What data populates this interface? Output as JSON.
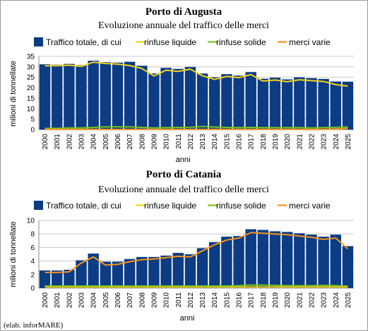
{
  "credit": "(elab. inforMARE)",
  "colors": {
    "traffico": "#0b3c84",
    "rinfuse_liquide": "#f5d51c",
    "rinfuse_solide": "#7dbf1e",
    "merci_varie": "#f7941d",
    "grid": "#c8c8c8"
  },
  "chart_data": [
    {
      "type": "bar",
      "title": "Porto di Augusta",
      "subtitle": "Evoluzione annuale del traffico delle merci",
      "xlabel": "anni",
      "ylabel": "milioni di tonnellate",
      "ylim": [
        0,
        35
      ],
      "yticks": [
        0,
        5,
        10,
        15,
        20,
        25,
        30,
        35
      ],
      "grid": true,
      "legend": "top",
      "categories": [
        "2000",
        "2001",
        "2002",
        "2003",
        "2004",
        "2005",
        "2006",
        "2007",
        "2008",
        "2009",
        "2010",
        "2011",
        "2012",
        "2013",
        "2014",
        "2015",
        "2016",
        "2017",
        "2018",
        "2019",
        "2020",
        "2021",
        "2022",
        "2023",
        "2024",
        "2025"
      ],
      "series": [
        {
          "name": "Traffico totale, di cui",
          "kind": "bar",
          "color": "#0b3c84",
          "values": [
            31.2,
            31.0,
            31.4,
            30.8,
            32.9,
            32.2,
            32.0,
            32.4,
            30.5,
            26.8,
            29.5,
            29.0,
            29.9,
            26.8,
            25.0,
            26.5,
            25.8,
            27.5,
            24.3,
            24.8,
            24.0,
            25.0,
            24.6,
            24.2,
            23.0,
            22.9
          ]
        },
        {
          "name": "rinfuse liquide",
          "kind": "line",
          "color": "#f5d51c",
          "values": [
            30.5,
            30.5,
            30.8,
            30.2,
            32.2,
            31.6,
            31.3,
            30.6,
            29.2,
            25.6,
            28.4,
            27.8,
            28.9,
            25.7,
            24.0,
            25.4,
            24.8,
            26.3,
            23.2,
            23.7,
            22.9,
            23.8,
            23.4,
            23.0,
            21.5,
            20.8
          ]
        },
        {
          "name": "rinfuse solide",
          "kind": "line",
          "color": "#7dbf1e",
          "values": [
            0.6,
            0.6,
            0.8,
            0.8,
            1.0,
            1.3,
            1.3,
            1.3,
            1.0,
            0.8,
            0.9,
            1.0,
            1.1,
            1.5,
            1.2,
            1.0,
            0.9,
            1.0,
            0.9,
            0.9,
            0.9,
            0.9,
            0.8,
            0.9,
            1.1,
            1.2
          ]
        },
        {
          "name": "merci varie",
          "kind": "line",
          "color": "#f7941d",
          "values": [
            0.1,
            0.1,
            0.1,
            0.1,
            0.1,
            0.1,
            0.1,
            0.1,
            0.1,
            0.1,
            0.1,
            0.1,
            0.1,
            0.1,
            0.1,
            0.1,
            0.1,
            0.1,
            0.1,
            0.1,
            0.1,
            0.1,
            0.1,
            0.1,
            0.3,
            0.5
          ]
        }
      ]
    },
    {
      "type": "bar",
      "title": "Porto di Catania",
      "subtitle": "Evoluzione annuale del traffico delle merci",
      "xlabel": "anni",
      "ylabel": "milioni di tonnellate",
      "ylim": [
        0,
        10
      ],
      "yticks": [
        0,
        2,
        4,
        6,
        8,
        10
      ],
      "grid": true,
      "legend": "top",
      "categories": [
        "2000",
        "2001",
        "2002",
        "2003",
        "2004",
        "2005",
        "2006",
        "2007",
        "2008",
        "2009",
        "2010",
        "2011",
        "2012",
        "2013",
        "2014",
        "2015",
        "2016",
        "2017",
        "2018",
        "2019",
        "2020",
        "2021",
        "2022",
        "2023",
        "2024",
        "2025"
      ],
      "series": [
        {
          "name": "Traffico totale, di cui",
          "kind": "bar",
          "color": "#0b3c84",
          "values": [
            2.6,
            2.6,
            2.7,
            4.1,
            5.1,
            3.9,
            3.9,
            4.3,
            4.6,
            4.6,
            4.8,
            5.2,
            5.0,
            5.9,
            6.8,
            7.6,
            7.7,
            8.7,
            8.6,
            8.4,
            8.3,
            8.1,
            7.9,
            7.6,
            7.9,
            6.2
          ]
        },
        {
          "name": "rinfuse liquide",
          "kind": "line",
          "color": "#f5d51c",
          "values": [
            0.15,
            0.15,
            0.15,
            0.15,
            0.15,
            0.15,
            0.15,
            0.15,
            0.15,
            0.15,
            0.15,
            0.15,
            0.15,
            0.15,
            0.15,
            0.15,
            0.15,
            0.15,
            0.15,
            0.15,
            0.15,
            0.15,
            0.15,
            0.15,
            0.15,
            0.15
          ]
        },
        {
          "name": "rinfuse solide",
          "kind": "line",
          "color": "#7dbf1e",
          "values": [
            0.3,
            0.3,
            0.3,
            0.3,
            0.3,
            0.3,
            0.3,
            0.3,
            0.3,
            0.3,
            0.3,
            0.3,
            0.3,
            0.3,
            0.3,
            0.3,
            0.35,
            0.45,
            0.45,
            0.4,
            0.35,
            0.35,
            0.35,
            0.4,
            0.35,
            0.3
          ]
        },
        {
          "name": "merci varie",
          "kind": "line",
          "color": "#f7941d",
          "values": [
            2.3,
            2.3,
            2.4,
            3.7,
            4.6,
            3.4,
            3.5,
            3.9,
            4.2,
            4.3,
            4.5,
            4.7,
            4.6,
            5.5,
            6.4,
            7.1,
            7.4,
            8.2,
            8.1,
            8.0,
            7.9,
            7.7,
            7.5,
            7.2,
            7.4,
            5.8
          ]
        }
      ]
    }
  ]
}
